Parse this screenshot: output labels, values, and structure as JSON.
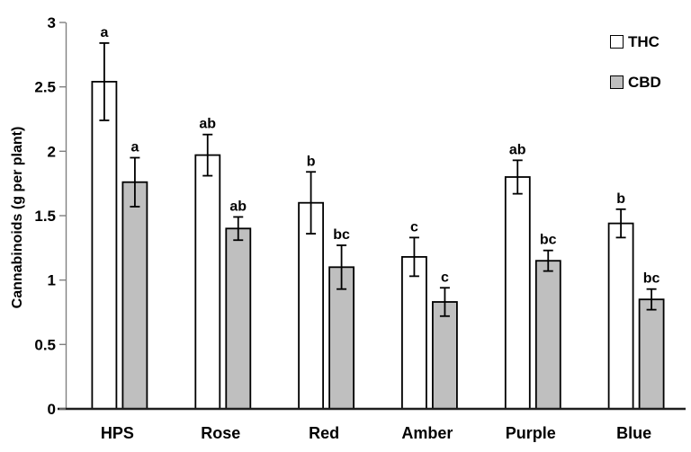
{
  "chart_data": {
    "type": "bar",
    "title": "",
    "ylabel": "Cannabinoids (g per plant)",
    "xlabel": "",
    "ylim": [
      0,
      3
    ],
    "yticks": [
      0,
      0.5,
      1,
      1.5,
      2,
      2.5,
      3
    ],
    "ytick_labels": [
      "0",
      "0.5",
      "1",
      "1.5",
      "2",
      "2.5",
      "3"
    ],
    "grid": false,
    "legend_position": "top-right",
    "categories": [
      "HPS",
      "Rose",
      "Red",
      "Amber",
      "Purple",
      "Blue"
    ],
    "series": [
      {
        "name": "THC",
        "fill": "#FFFFFF",
        "stroke": "#000000",
        "values": [
          2.54,
          1.97,
          1.6,
          1.18,
          1.8,
          1.44
        ],
        "errors": [
          0.3,
          0.16,
          0.24,
          0.15,
          0.13,
          0.11
        ],
        "sig_letters": [
          "a",
          "ab",
          "b",
          "c",
          "ab",
          "b"
        ]
      },
      {
        "name": "CBD",
        "fill": "#BFBFBF",
        "stroke": "#000000",
        "values": [
          1.76,
          1.4,
          1.1,
          0.83,
          1.15,
          0.85
        ],
        "errors": [
          0.19,
          0.09,
          0.17,
          0.11,
          0.08,
          0.08
        ],
        "sig_letters": [
          "a",
          "ab",
          "bc",
          "c",
          "bc",
          "bc"
        ]
      }
    ],
    "colors": {
      "axis_y": "#808080",
      "axis_x": "#1f1f1f",
      "error_bar": "#000000",
      "text": "#000000"
    }
  }
}
